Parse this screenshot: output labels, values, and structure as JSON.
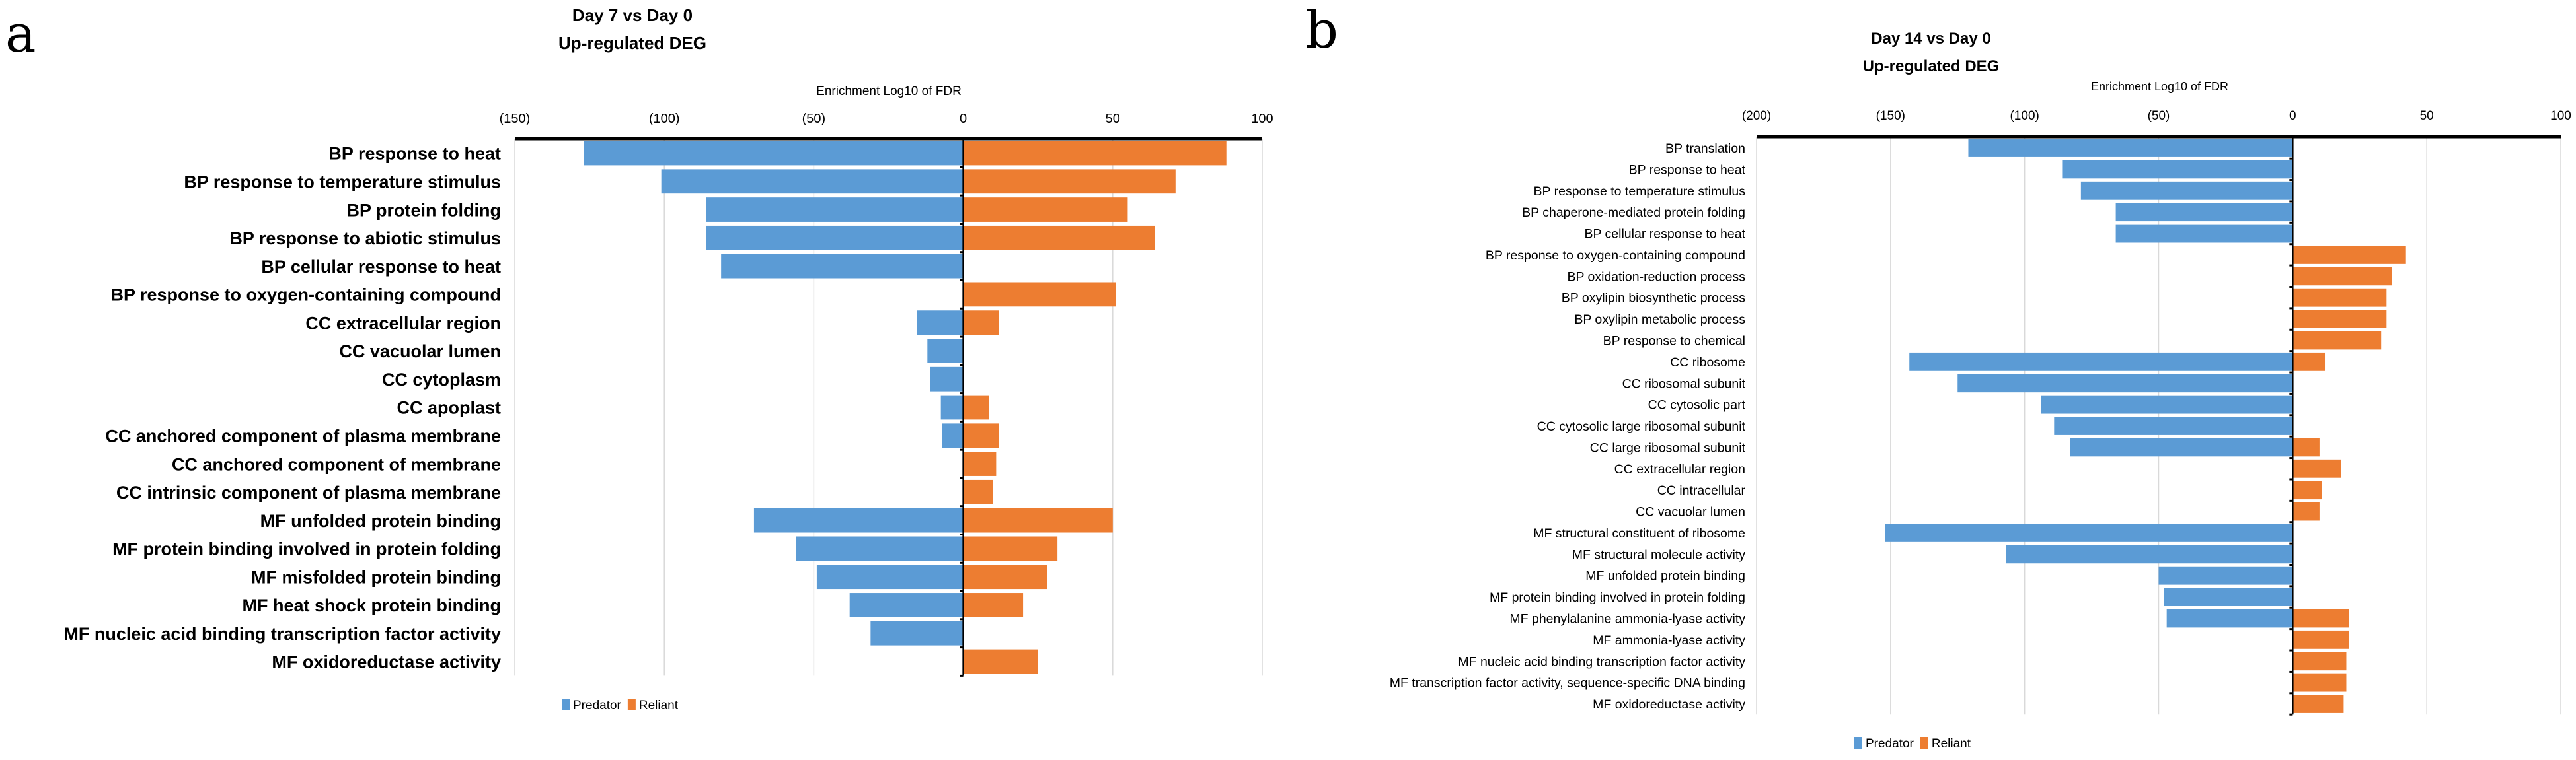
{
  "colors": {
    "Predator": "#5B9BD5",
    "Reliant": "#ED7D31"
  },
  "chart_data": [
    {
      "panel": "a",
      "type": "bar",
      "orientation": "horizontal",
      "title": "Day 7 vs Day 0",
      "subtitle": "Up-regulated DEG",
      "xlabel": "Enrichment Log10 of FDR",
      "xlim": [
        -150,
        100
      ],
      "xticks": [
        -150,
        -100,
        -50,
        0,
        50,
        100
      ],
      "xtick_labels": [
        "(150)",
        "(100)",
        "(50)",
        "0",
        "50",
        "100"
      ],
      "grid": true,
      "legend": "bottom",
      "categories": [
        "BP response to heat",
        "BP response to temperature stimulus",
        "BP protein folding",
        "BP response to abiotic stimulus",
        "BP cellular response to heat",
        "BP response to oxygen-containing compound",
        "CC extracellular region",
        "CC vacuolar lumen",
        "CC cytoplasm",
        "CC apoplast",
        "CC anchored component of plasma membrane",
        "CC anchored component of membrane",
        "CC intrinsic component of plasma membrane",
        "MF unfolded protein binding",
        "MF protein binding involved in protein folding",
        "MF misfolded protein binding",
        "MF heat shock protein binding",
        "MF nucleic acid binding transcription factor activity",
        "MF oxidoreductase activity"
      ],
      "series": [
        {
          "name": "Predator",
          "values": [
            -127,
            -101,
            -86,
            -86,
            -81,
            0,
            -15.5,
            -12,
            -11,
            -7.5,
            -7,
            0,
            0,
            -70,
            -56,
            -49,
            -38,
            -31,
            0
          ]
        },
        {
          "name": "Reliant",
          "values": [
            88,
            71,
            55,
            64,
            0,
            51,
            12,
            0,
            0,
            8.5,
            12,
            11,
            10,
            50,
            31.5,
            28,
            20,
            0,
            25
          ]
        }
      ]
    },
    {
      "panel": "b",
      "type": "bar",
      "orientation": "horizontal",
      "title": "Day 14 vs Day 0",
      "subtitle": "Up-regulated DEG",
      "xlabel": "Enrichment Log10 of FDR",
      "xlim": [
        -200,
        100
      ],
      "xticks": [
        -200,
        -150,
        -100,
        -50,
        0,
        50,
        100
      ],
      "xtick_labels": [
        "(200)",
        "(150)",
        "(100)",
        "(50)",
        "0",
        "50",
        "100"
      ],
      "grid": true,
      "legend": "bottom",
      "categories": [
        "BP translation",
        "BP response to heat",
        "BP response to temperature stimulus",
        "BP chaperone-mediated protein folding",
        "BP cellular response to heat",
        "BP response to oxygen-containing compound",
        "BP oxidation-reduction process",
        "BP oxylipin biosynthetic process",
        "BP oxylipin metabolic process",
        "BP response to chemical",
        "CC ribosome",
        "CC ribosomal subunit",
        "CC cytosolic part",
        "CC cytosolic large ribosomal subunit",
        "CC large ribosomal subunit",
        "CC extracellular region",
        "CC intracellular",
        "CC vacuolar lumen",
        "MF structural constituent of ribosome",
        "MF structural molecule activity",
        "MF unfolded protein binding",
        "MF protein binding involved in protein folding",
        "MF phenylalanine ammonia-lyase activity",
        "MF ammonia-lyase activity",
        "MF nucleic acid binding transcription factor activity",
        "MF transcription factor activity, sequence-specific DNA binding",
        "MF oxidoreductase activity"
      ],
      "series": [
        {
          "name": "Predator",
          "values": [
            -121,
            -86,
            -79,
            -66,
            -66,
            0,
            0,
            0,
            0,
            0,
            -143,
            -125,
            -94,
            -89,
            -83,
            0,
            0,
            0,
            -152,
            -107,
            -50,
            -48,
            -47,
            0,
            0,
            0,
            0
          ]
        },
        {
          "name": "Reliant",
          "values": [
            0,
            0,
            0,
            0,
            0,
            42,
            37,
            35,
            35,
            33,
            12,
            0,
            0,
            0,
            10,
            18,
            11,
            10,
            0,
            0,
            0,
            0,
            21,
            21,
            20,
            20,
            19
          ]
        }
      ]
    }
  ]
}
